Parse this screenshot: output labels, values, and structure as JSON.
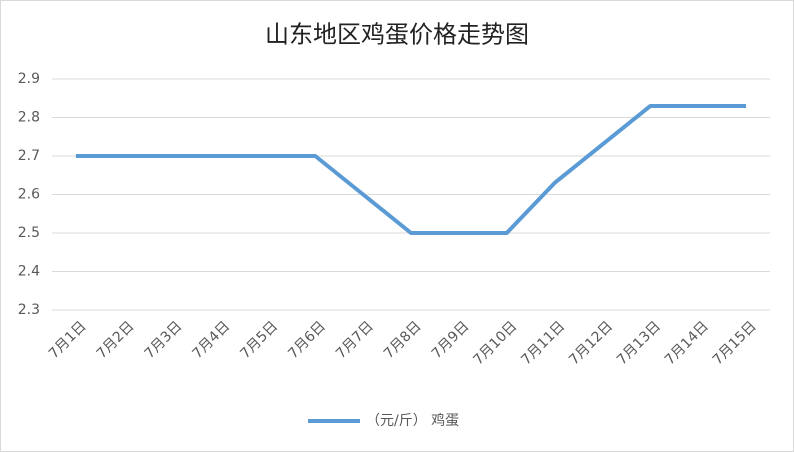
{
  "chart_data": {
    "type": "line",
    "title": "山东地区鸡蛋价格走势图",
    "categories": [
      "7月1日",
      "7月2日",
      "7月3日",
      "7月4日",
      "7月5日",
      "7月6日",
      "7月7日",
      "7月8日",
      "7月9日",
      "7月10日",
      "7月11日",
      "7月12日",
      "7月13日",
      "7月14日",
      "7月15日"
    ],
    "series": [
      {
        "name": "（元/斤） 鸡蛋",
        "color": "#5b9bd5",
        "values": [
          2.7,
          2.7,
          2.7,
          2.7,
          2.7,
          2.7,
          2.6,
          2.5,
          2.5,
          2.5,
          2.63,
          2.73,
          2.83,
          2.83,
          2.83
        ]
      }
    ],
    "ylim": [
      2.3,
      2.9
    ],
    "yticks": [
      2.3,
      2.4,
      2.5,
      2.6,
      2.7,
      2.8,
      2.9
    ],
    "grid": true,
    "legend": "bottom"
  }
}
